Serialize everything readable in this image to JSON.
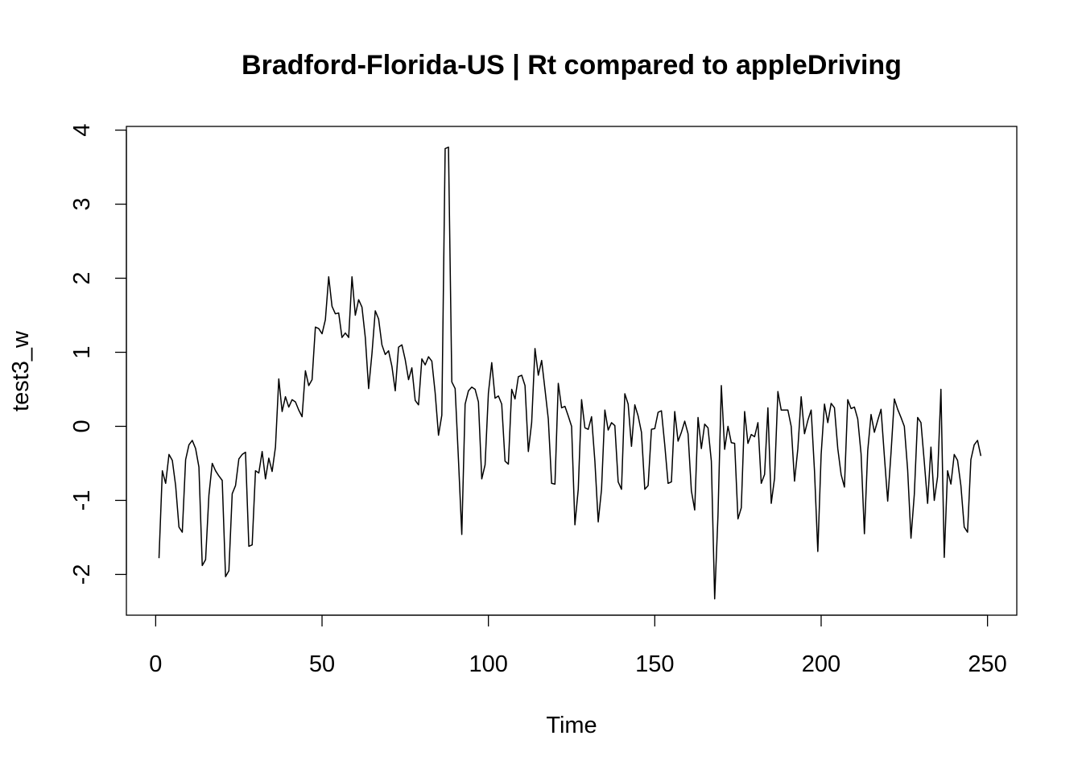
{
  "chart_data": {
    "type": "line",
    "title": "Bradford-Florida-US | Rt compared to appleDriving",
    "xlabel": "Time",
    "ylabel": "test3_w",
    "xlim": [
      -8.8,
      258.8
    ],
    "ylim": [
      -2.55,
      4.05
    ],
    "x_ticks": [
      0,
      50,
      100,
      150,
      200,
      250
    ],
    "x_tick_labels": [
      "0",
      "50",
      "100",
      "150",
      "200",
      "250"
    ],
    "y_ticks": [
      -2,
      -1,
      0,
      1,
      2,
      3,
      4
    ],
    "y_tick_labels": [
      "-2",
      "-1",
      "0",
      "1",
      "2",
      "3",
      "4"
    ],
    "grid": false,
    "legend": "none",
    "line_color": "#000000",
    "x_start": 1,
    "x_step": 1,
    "series": [
      {
        "values": [
          -1.78,
          -0.6,
          -0.77,
          -0.38,
          -0.46,
          -0.8,
          -1.36,
          -1.43,
          -0.45,
          -0.25,
          -0.19,
          -0.3,
          -0.55,
          -1.88,
          -1.8,
          -0.93,
          -0.5,
          -0.6,
          -0.67,
          -0.73,
          -2.03,
          -1.95,
          -0.91,
          -0.8,
          -0.44,
          -0.38,
          -0.35,
          -1.62,
          -1.6,
          -0.6,
          -0.63,
          -0.34,
          -0.71,
          -0.43,
          -0.61,
          -0.28,
          0.64,
          0.2,
          0.4,
          0.26,
          0.36,
          0.33,
          0.22,
          0.13,
          0.75,
          0.55,
          0.63,
          1.34,
          1.32,
          1.25,
          1.44,
          2.02,
          1.62,
          1.52,
          1.53,
          1.2,
          1.26,
          1.2,
          2.02,
          1.5,
          1.71,
          1.61,
          1.2,
          0.51,
          0.98,
          1.56,
          1.45,
          1.1,
          0.97,
          1.02,
          0.81,
          0.48,
          1.07,
          1.1,
          0.9,
          0.63,
          0.79,
          0.35,
          0.29,
          0.91,
          0.83,
          0.94,
          0.88,
          0.45,
          -0.12,
          0.15,
          3.75,
          3.77,
          0.6,
          0.51,
          -0.45,
          -1.46,
          0.3,
          0.48,
          0.53,
          0.5,
          0.33,
          -0.71,
          -0.52,
          0.45,
          0.86,
          0.38,
          0.41,
          0.3,
          -0.47,
          -0.51,
          0.5,
          0.37,
          0.67,
          0.69,
          0.55,
          -0.34,
          0.05,
          1.05,
          0.69,
          0.89,
          0.5,
          0.1,
          -0.77,
          -0.78,
          0.58,
          0.25,
          0.27,
          0.14,
          0.0,
          -1.33,
          -0.85,
          0.36,
          -0.02,
          -0.04,
          0.13,
          -0.47,
          -1.29,
          -0.85,
          0.22,
          -0.05,
          0.05,
          0.01,
          -0.75,
          -0.85,
          0.44,
          0.3,
          -0.27,
          0.29,
          0.14,
          -0.08,
          -0.85,
          -0.8,
          -0.04,
          -0.03,
          0.19,
          0.21,
          -0.25,
          -0.77,
          -0.75,
          0.2,
          -0.2,
          -0.08,
          0.07,
          -0.1,
          -0.87,
          -1.13,
          0.12,
          -0.3,
          0.03,
          -0.02,
          -0.47,
          -2.33,
          -1.2,
          0.55,
          -0.31,
          0.0,
          -0.22,
          -0.23,
          -1.25,
          -1.1,
          0.2,
          -0.23,
          -0.11,
          -0.14,
          0.05,
          -0.77,
          -0.65,
          0.25,
          -1.04,
          -0.7,
          0.47,
          0.22,
          0.22,
          0.22,
          0.0,
          -0.74,
          -0.3,
          0.4,
          -0.1,
          0.08,
          0.22,
          -0.6,
          -1.69,
          -0.38,
          0.3,
          0.05,
          0.31,
          0.25,
          -0.3,
          -0.65,
          -0.82,
          0.36,
          0.24,
          0.26,
          0.1,
          -0.37,
          -1.45,
          -0.33,
          0.16,
          -0.08,
          0.08,
          0.23,
          -0.4,
          -1.01,
          -0.36,
          0.37,
          0.23,
          0.12,
          0.0,
          -0.59,
          -1.51,
          -0.92,
          0.12,
          0.05,
          -0.48,
          -1.04,
          -0.28,
          -1.0,
          -0.68,
          0.5,
          -1.77,
          -0.6,
          -0.78,
          -0.38,
          -0.46,
          -0.8,
          -1.36,
          -1.43,
          -0.45,
          -0.25,
          -0.19,
          -0.4
        ]
      }
    ]
  }
}
